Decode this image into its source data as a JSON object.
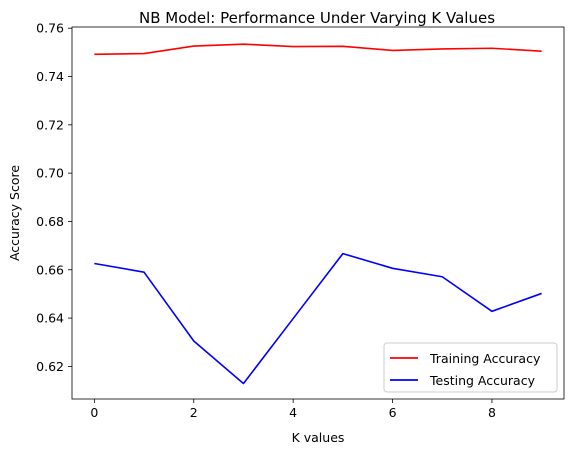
{
  "chart_data": {
    "type": "line",
    "title": "NB Model: Performance Under Varying K Values",
    "xlabel": "K values",
    "ylabel": "Accuracy Score",
    "x": [
      0,
      1,
      2,
      3,
      4,
      5,
      6,
      7,
      8,
      9
    ],
    "xlim": [
      -0.45,
      9.45
    ],
    "ylim": [
      0.6065,
      0.7605
    ],
    "xticks": [
      0,
      2,
      4,
      6,
      8
    ],
    "xtick_labels": [
      "0",
      "2",
      "4",
      "6",
      "8"
    ],
    "yticks": [
      0.62,
      0.64,
      0.66,
      0.68,
      0.7,
      0.72,
      0.74,
      0.76
    ],
    "ytick_labels": [
      "0.62",
      "0.64",
      "0.66",
      "0.68",
      "0.70",
      "0.72",
      "0.74",
      "0.76"
    ],
    "grid": false,
    "legend_position": "bottom-right",
    "series": [
      {
        "name": "Training Accuracy",
        "color": "#ff0000",
        "values": [
          0.7492,
          0.7495,
          0.7526,
          0.7534,
          0.7524,
          0.7525,
          0.7508,
          0.7514,
          0.7517,
          0.7505
        ]
      },
      {
        "name": "Testing Accuracy",
        "color": "#0000ff",
        "values": [
          0.6626,
          0.659,
          0.6305,
          0.6129,
          0.6398,
          0.6667,
          0.6606,
          0.6571,
          0.6428,
          0.6502
        ]
      }
    ]
  }
}
